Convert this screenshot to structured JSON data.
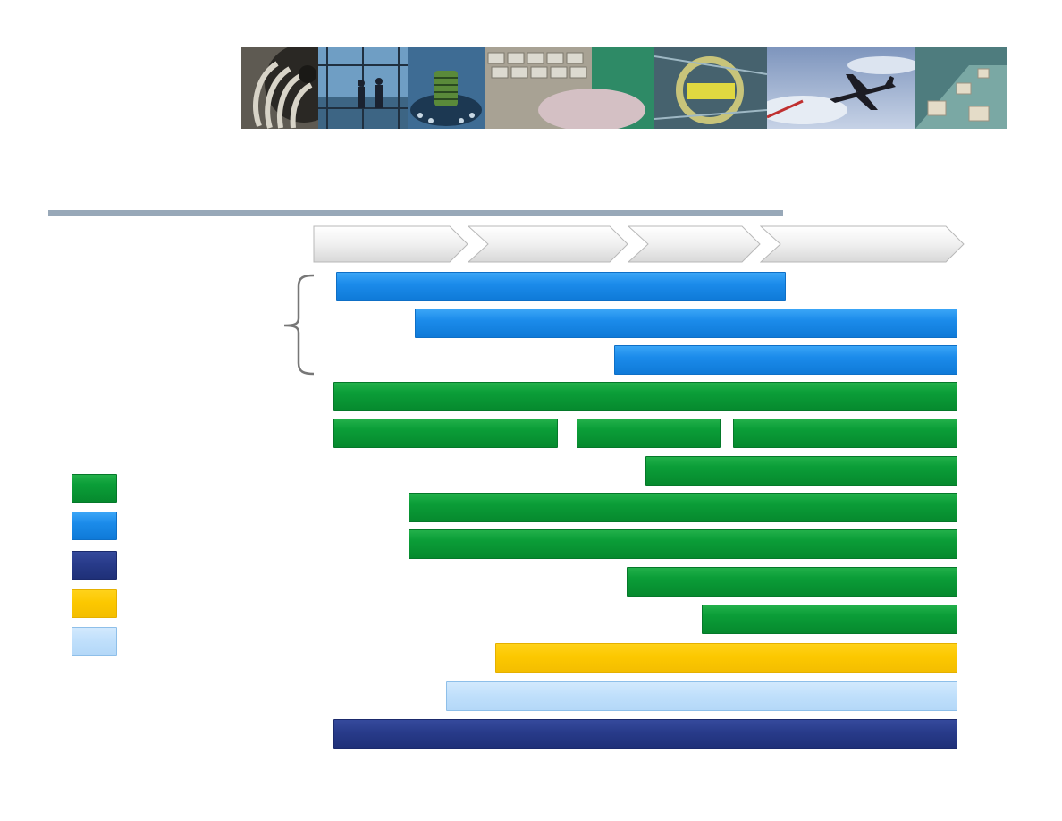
{
  "banner": {
    "tiles": [
      {
        "name": "turbine-image",
        "width": 86,
        "bg": "#6a6a60"
      },
      {
        "name": "workers-scaffold-image",
        "width": 100,
        "bg": "#4f7fa8"
      },
      {
        "name": "microchip-image",
        "width": 86,
        "bg": "#4a7aa0"
      },
      {
        "name": "keyboard-image",
        "width": 190,
        "bg": "#9c9a8e"
      },
      {
        "name": "machinery-image",
        "width": 126,
        "bg": "#4a6a78"
      },
      {
        "name": "airplane-image",
        "width": 166,
        "bg": "#8da3c4"
      },
      {
        "name": "conveyor-image",
        "width": 102,
        "bg": "#5c8a8a"
      }
    ]
  },
  "phases": [
    {
      "name": "phase-arrow-1",
      "start": 0,
      "end": 1
    },
    {
      "name": "phase-arrow-2",
      "start": 1,
      "end": 2
    },
    {
      "name": "phase-arrow-3",
      "start": 2,
      "end": 3
    },
    {
      "name": "phase-arrow-4",
      "start": 3,
      "end": 4
    }
  ],
  "colors": {
    "green": "#0b9e38",
    "blue": "#1b8bea",
    "navy": "#283b8a",
    "yellow": "#fcc800",
    "lightblue": "#bfdffb",
    "rule": "#98a8b8",
    "brace": "#777777"
  },
  "rows": [
    {
      "name": "activity-bar-1",
      "color": "blue",
      "start": 0.0,
      "end": 0.72
    },
    {
      "name": "activity-bar-2",
      "color": "blue",
      "start": 0.13,
      "end": 1.0
    },
    {
      "name": "activity-bar-3",
      "color": "blue",
      "start": 0.45,
      "end": 1.0
    },
    {
      "name": "activity-bar-4",
      "color": "green",
      "start": 0.0,
      "end": 1.0
    },
    {
      "name": "activity-bar-5a",
      "color": "green",
      "start": 0.0,
      "end": 0.36
    },
    {
      "name": "activity-bar-5b",
      "color": "green",
      "start": 0.39,
      "end": 0.62
    },
    {
      "name": "activity-bar-5c",
      "color": "green",
      "start": 0.64,
      "end": 1.0
    },
    {
      "name": "activity-bar-6",
      "color": "green",
      "start": 0.5,
      "end": 1.0
    },
    {
      "name": "activity-bar-7",
      "color": "green",
      "start": 0.12,
      "end": 1.0
    },
    {
      "name": "activity-bar-8",
      "color": "green",
      "start": 0.12,
      "end": 1.0
    },
    {
      "name": "activity-bar-9",
      "color": "green",
      "start": 0.47,
      "end": 1.0
    },
    {
      "name": "activity-bar-10",
      "color": "green",
      "start": 0.59,
      "end": 1.0
    },
    {
      "name": "activity-bar-11",
      "color": "yellow",
      "start": 0.26,
      "end": 1.0
    },
    {
      "name": "activity-bar-12",
      "color": "lightblue",
      "start": 0.18,
      "end": 1.0
    },
    {
      "name": "activity-bar-13",
      "color": "navy",
      "start": 0.0,
      "end": 1.0
    }
  ],
  "legend": [
    {
      "name": "legend-swatch-green",
      "color": "green"
    },
    {
      "name": "legend-swatch-blue",
      "color": "blue"
    },
    {
      "name": "legend-swatch-navy",
      "color": "navy"
    },
    {
      "name": "legend-swatch-yellow",
      "color": "yellow"
    },
    {
      "name": "legend-swatch-lightblue",
      "color": "lightblue"
    }
  ]
}
